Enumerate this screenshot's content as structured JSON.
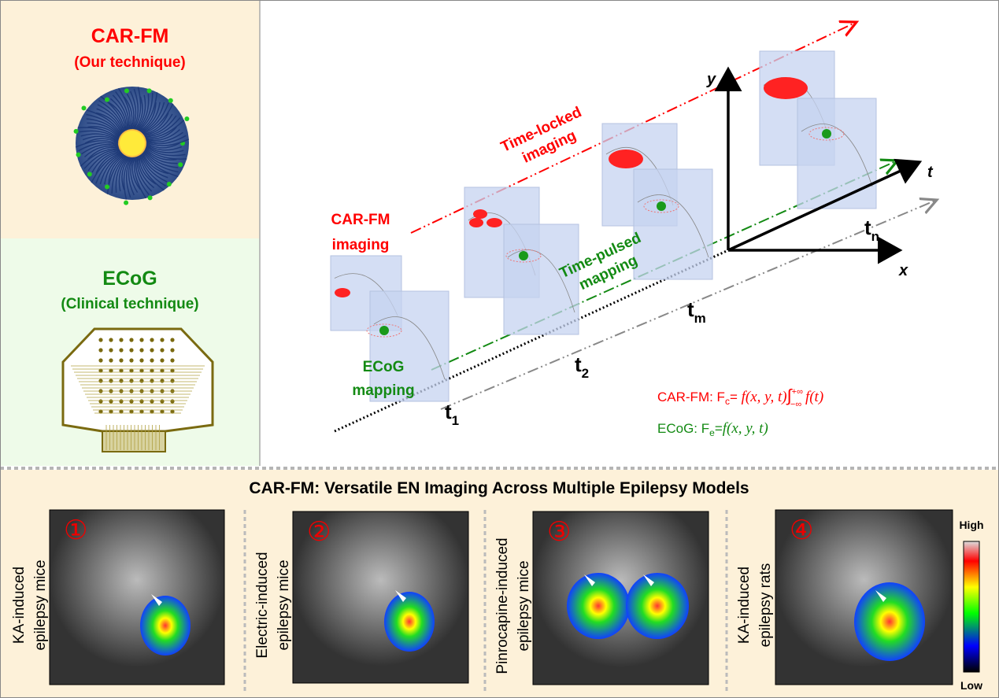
{
  "left": {
    "carfm": {
      "title": "CAR-FM",
      "subtitle": "(Our technique)"
    },
    "ecog": {
      "title": "ECoG",
      "subtitle": "(Clinical technique)"
    }
  },
  "diagram": {
    "time_locked": [
      "Time-locked",
      "imaging"
    ],
    "carfm_imaging": [
      "CAR-FM",
      "imaging"
    ],
    "time_pulsed": [
      "Time-pulsed",
      "mapping"
    ],
    "ecog_mapping": [
      "ECoG",
      "mapping"
    ],
    "axes": {
      "y": "y",
      "t": "t",
      "x": "x"
    },
    "time_labels": [
      {
        "base": "t",
        "sub": "1"
      },
      {
        "base": "t",
        "sub": "2"
      },
      {
        "base": "t",
        "sub": "m"
      },
      {
        "base": "t",
        "sub": "n"
      }
    ],
    "formula_carfm": {
      "prefix": "CAR-FM: F",
      "sub": "c",
      "eq": "= ",
      "fn": "f(x, y, t)",
      "integral": "∫",
      "upper": "+∞",
      "lower": "−∞",
      "tail": " f(t)"
    },
    "formula_ecog": {
      "prefix": "ECoG: F",
      "sub": "e",
      "eq": "=",
      "fn": "f(x, y, t)"
    }
  },
  "bottom": {
    "title": "CAR-FM: Versatile EN Imaging Across Multiple Epilepsy Models",
    "panels": [
      {
        "number": "①",
        "label": [
          "KA-induced",
          "epilepsy mice"
        ]
      },
      {
        "number": "②",
        "label": [
          "Electric-induced",
          "epilepsy mice"
        ]
      },
      {
        "number": "③",
        "label": [
          "Pinrocapine-induced",
          "epilepsy mice"
        ]
      },
      {
        "number": "④",
        "label": [
          "KA-induced",
          "epilepsy rats"
        ]
      }
    ],
    "colorbar": {
      "high": "High",
      "low": "Low"
    }
  },
  "colors": {
    "carfm_red": "#ff0000",
    "ecog_green": "#138a13",
    "cream": "#fdf1d9",
    "mint": "#eefbe9"
  }
}
